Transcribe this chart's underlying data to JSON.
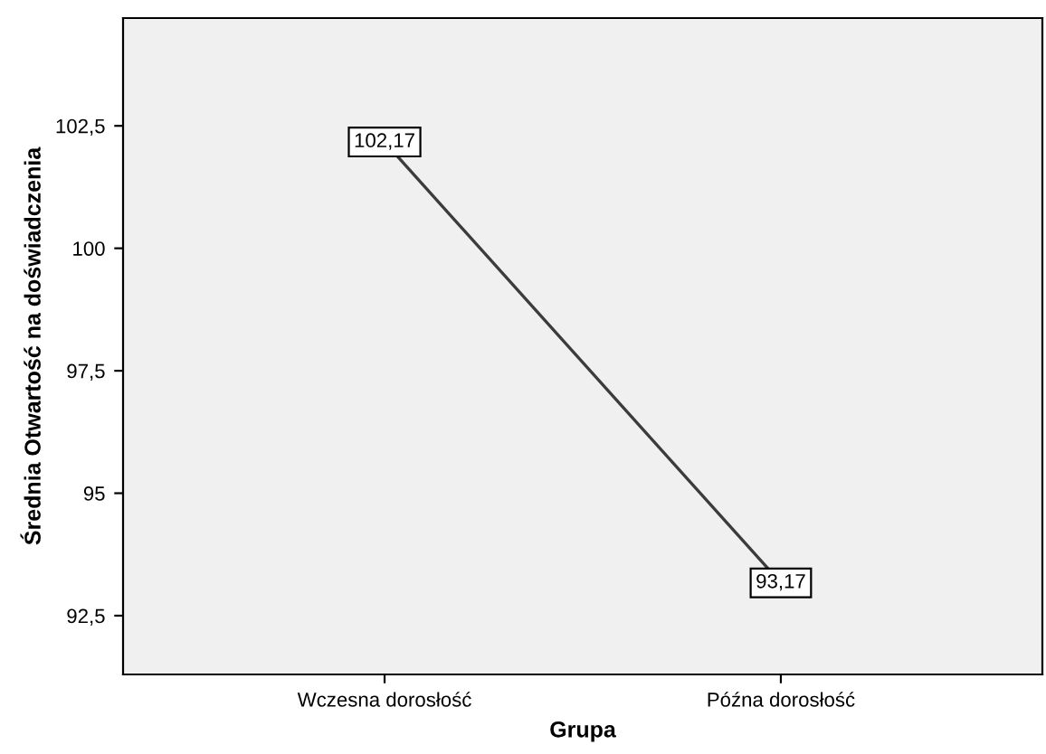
{
  "chart_data": {
    "type": "line",
    "xlabel": "Grupa",
    "ylabel": "Średnia Otwartość na doświadczenia",
    "categories": [
      "Wczesna dorosłość",
      "Późna dorosłość"
    ],
    "series": [
      {
        "color": "#3c3c3c",
        "values": [
          102.17,
          93.17
        ],
        "value_labels": [
          "102,17",
          "93,17"
        ]
      }
    ],
    "ylim": [
      91.3,
      104.7
    ],
    "yticks": [
      {
        "value": 92.5,
        "label": "92,5"
      },
      {
        "value": 95,
        "label": "95"
      },
      {
        "value": 97.5,
        "label": "97,5"
      },
      {
        "value": 100,
        "label": "100"
      },
      {
        "value": 102.5,
        "label": "102,5"
      }
    ],
    "grid": false,
    "legend": false,
    "marker": "square",
    "line_style": "solid"
  }
}
